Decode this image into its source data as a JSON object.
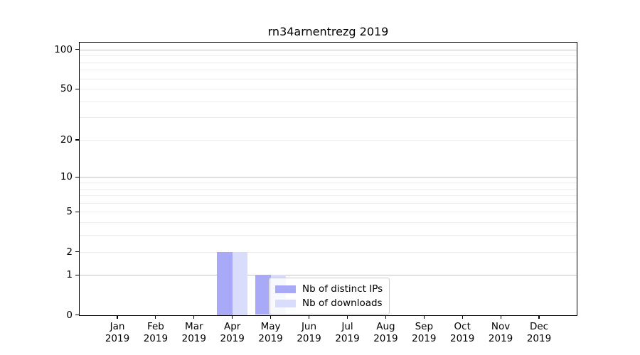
{
  "chart_data": {
    "type": "bar",
    "title": "rn34arnentrezg 2019",
    "categories": [
      "Jan 2019",
      "Feb 2019",
      "Mar 2019",
      "Apr 2019",
      "May 2019",
      "Jun 2019",
      "Jul 2019",
      "Aug 2019",
      "Sep 2019",
      "Oct 2019",
      "Nov 2019",
      "Dec 2019"
    ],
    "series": [
      {
        "name": "Nb of distinct IPs",
        "color": "#a8aaf7",
        "values": [
          0,
          0,
          0,
          2,
          1,
          0,
          0,
          0,
          0,
          0,
          0,
          0
        ]
      },
      {
        "name": "Nb of downloads",
        "color": "#dadcfc",
        "values": [
          0,
          0,
          0,
          2,
          1,
          0,
          0,
          0,
          0,
          0,
          0,
          0
        ]
      }
    ],
    "yscale": "log1p",
    "ylim": [
      0,
      113
    ],
    "xlabel": "",
    "ylabel": "",
    "ytick_values": [
      0,
      1,
      2,
      5,
      10,
      20,
      50,
      100
    ],
    "ytick_labels": [
      "0",
      "1",
      "2",
      "5",
      "10",
      "20",
      "50",
      "100"
    ],
    "major_gridlines": [
      1,
      10,
      100
    ],
    "minor_gridlines": [
      2,
      3,
      4,
      5,
      6,
      7,
      8,
      9,
      20,
      30,
      40,
      50,
      60,
      70,
      80,
      90
    ],
    "grid": "on",
    "legend_position": "inside lower center"
  },
  "legend": {
    "entries": [
      {
        "label": "Nb of distinct IPs"
      },
      {
        "label": "Nb of downloads"
      }
    ]
  },
  "colors": {
    "major_grid": "#c3c3c3",
    "minor_grid": "#ededed",
    "spine": "#000000",
    "legend_border": "#cccccc"
  }
}
